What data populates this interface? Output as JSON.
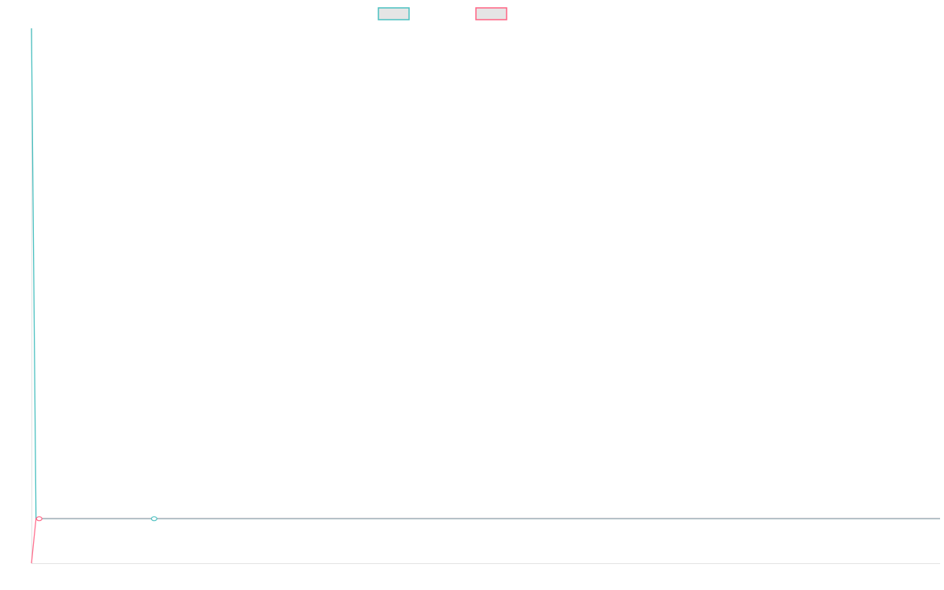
{
  "chart_data": {
    "type": "line",
    "title": "",
    "xlabel": "",
    "ylabel": "",
    "xlim": [
      0,
      200
    ],
    "ylim": [
      0,
      12
    ],
    "grid": false,
    "legend": "top-center",
    "series": [
      {
        "color": "#4bc0c0",
        "x": [
          0,
          1,
          27,
          200
        ],
        "y": [
          12,
          1,
          1,
          1
        ],
        "markers": [
          27
        ]
      },
      {
        "color": "#ff6384",
        "x": [
          0,
          1,
          1.7,
          200
        ],
        "y": [
          0,
          1,
          1,
          1
        ],
        "markers": [
          1.7
        ]
      }
    ]
  }
}
